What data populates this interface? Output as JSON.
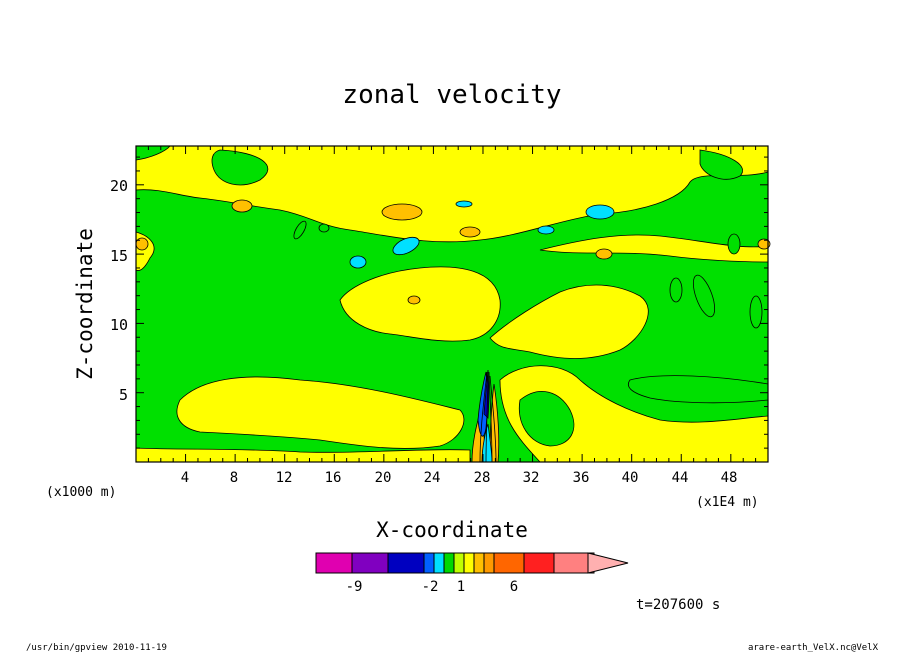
{
  "chart_data": {
    "type": "contour",
    "title": "zonal velocity",
    "xlabel": "X-coordinate",
    "ylabel": "Z-coordinate",
    "x_unit": "(x1E4 m)",
    "y_unit": "(x1000 m)",
    "xlim": [
      0,
      51
    ],
    "ylim": [
      0,
      22.8
    ],
    "xticks": [
      "4",
      "8",
      "12",
      "16",
      "20",
      "24",
      "28",
      "32",
      "36",
      "40",
      "44",
      "48"
    ],
    "xtick_values": [
      4,
      8,
      12,
      16,
      20,
      24,
      28,
      32,
      36,
      40,
      44,
      48
    ],
    "yticks": [
      "5",
      "10",
      "15",
      "20"
    ],
    "ytick_values": [
      5,
      10,
      15,
      20
    ],
    "colorbar": {
      "labels": [
        "-9",
        "-2",
        "1",
        "6"
      ],
      "colors": [
        "#e000b0",
        "#8000c0",
        "#0000c0",
        "#0060ff",
        "#00e0ff",
        "#00d800",
        "#c0ff00",
        "#ffff00",
        "#ffc000",
        "#ff9900",
        "#ff6600",
        "#ff2020",
        "#ff8080",
        "#ffb0b0"
      ]
    },
    "colors": {
      "positive_band": "#ffff00",
      "near_zero_band": "#00e000",
      "weak_negative": "#00e0ff",
      "strong_negative": "#0060ff",
      "weak_positive": "#ffc000"
    }
  },
  "time_label": "t=207600 s",
  "footer_left": "/usr/bin/gpview  2010-11-19",
  "footer_right": "arare-earth_VelX.nc@VelX"
}
